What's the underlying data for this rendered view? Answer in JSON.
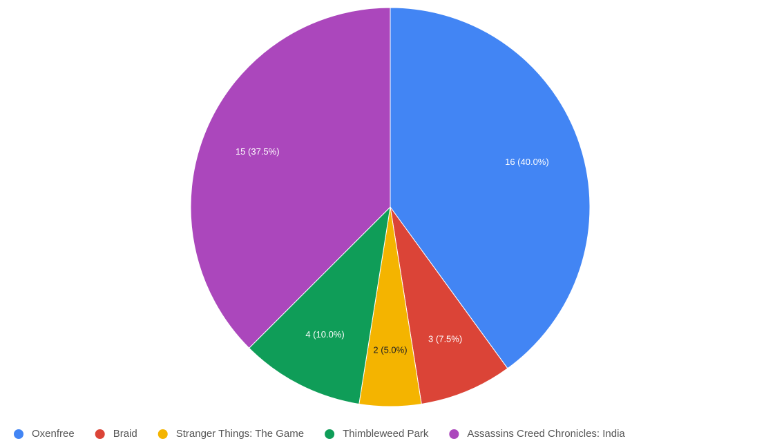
{
  "chart_data": {
    "type": "pie",
    "title": "",
    "legend_position": "bottom",
    "start_angle_deg": 0,
    "direction": "clockwise",
    "slices": [
      {
        "name": "Oxenfree",
        "value": 16,
        "label": "16 (40.0%)",
        "color": "#4285F4",
        "label_color": "#ffffff"
      },
      {
        "name": "Braid",
        "value": 3,
        "label": "3 (7.5%)",
        "color": "#DB4437",
        "label_color": "#ffffff"
      },
      {
        "name": "Stranger Things: The Game",
        "value": 2,
        "label": "2 (5.0%)",
        "color": "#F4B400",
        "label_color": "#222222"
      },
      {
        "name": "Thimbleweed Park",
        "value": 4,
        "label": "4 (10.0%)",
        "color": "#0F9D58",
        "label_color": "#ffffff"
      },
      {
        "name": "Assassins Creed Chronicles: India",
        "value": 15,
        "label": "15 (37.5%)",
        "color": "#AB47BC",
        "label_color": "#ffffff"
      }
    ]
  }
}
